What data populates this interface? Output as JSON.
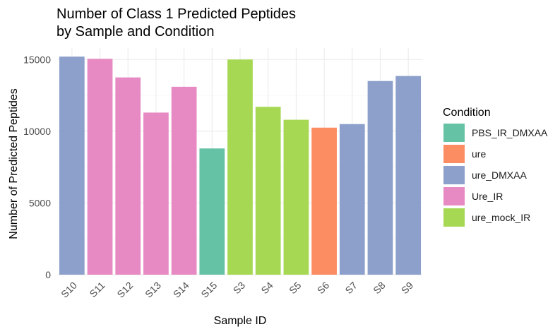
{
  "chart_data": {
    "type": "bar",
    "title": [
      "Number of Class 1 Predicted Peptides",
      "by Sample and Condition"
    ],
    "xlabel": "Sample ID",
    "ylabel": "Number of Predicted Peptides",
    "ylim": [
      0,
      15800
    ],
    "yticks": [
      0,
      5000,
      10000,
      15000
    ],
    "grid": true,
    "legend": {
      "title": "Condition",
      "position": "right",
      "entries": [
        {
          "name": "PBS_IR_DMXAA",
          "color": "#66c2a5"
        },
        {
          "name": "ure",
          "color": "#fc8d62"
        },
        {
          "name": "ure_DMXAA",
          "color": "#8da0cb"
        },
        {
          "name": "Ure_IR",
          "color": "#e78ac3"
        },
        {
          "name": "ure_mock_IR",
          "color": "#a6d854"
        }
      ]
    },
    "categories": [
      "S10",
      "S11",
      "S12",
      "S13",
      "S14",
      "S15",
      "S3",
      "S4",
      "S5",
      "S6",
      "S7",
      "S8",
      "S9"
    ],
    "values": [
      15200,
      15050,
      13750,
      11300,
      13100,
      8800,
      15000,
      11700,
      10800,
      10250,
      10500,
      13500,
      13850
    ],
    "conditions": [
      "ure_DMXAA",
      "Ure_IR",
      "Ure_IR",
      "Ure_IR",
      "Ure_IR",
      "PBS_IR_DMXAA",
      "ure_mock_IR",
      "ure_mock_IR",
      "ure_mock_IR",
      "ure",
      "ure_DMXAA",
      "ure_DMXAA",
      "ure_DMXAA"
    ]
  }
}
